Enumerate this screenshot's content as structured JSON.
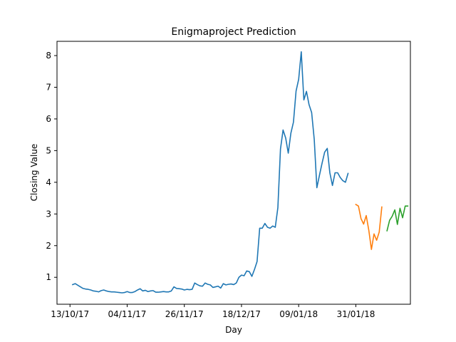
{
  "chart_data": {
    "type": "line",
    "title": "Enigmaproject Prediction",
    "xlabel": "Day",
    "ylabel": "Closing Value",
    "xlim": [
      -5,
      131
    ],
    "ylim": [
      0.15,
      8.45
    ],
    "grid": false,
    "x_ticks": [
      {
        "x": 0,
        "label": "13/10/17"
      },
      {
        "x": 22,
        "label": "04/11/17"
      },
      {
        "x": 44,
        "label": "26/11/17"
      },
      {
        "x": 66,
        "label": "18/12/17"
      },
      {
        "x": 88,
        "label": "09/01/18"
      },
      {
        "x": 110,
        "label": "31/01/18"
      }
    ],
    "y_ticks": [
      1,
      2,
      3,
      4,
      5,
      6,
      7,
      8
    ],
    "series": [
      {
        "color": "#1f77b4",
        "x": [
          1,
          2,
          3,
          4,
          5,
          6,
          7,
          8,
          9,
          10,
          11,
          12,
          13,
          14,
          15,
          16,
          17,
          18,
          19,
          20,
          21,
          22,
          23,
          24,
          25,
          26,
          27,
          28,
          29,
          30,
          31,
          32,
          33,
          34,
          35,
          36,
          37,
          38,
          39,
          40,
          41,
          42,
          43,
          44,
          45,
          46,
          47,
          48,
          49,
          50,
          51,
          52,
          53,
          54,
          55,
          56,
          57,
          58,
          59,
          60,
          61,
          62,
          63,
          64,
          65,
          66,
          67,
          68,
          69,
          70,
          71,
          72,
          73,
          74,
          75,
          76,
          77,
          78,
          79,
          80,
          81,
          82,
          83,
          84,
          85,
          86,
          87,
          88,
          89,
          90,
          91,
          92,
          93,
          94,
          95,
          96,
          97,
          98,
          99,
          100,
          101,
          102,
          103,
          104,
          105,
          106,
          107
        ],
        "y": [
          0.77,
          0.8,
          0.75,
          0.7,
          0.65,
          0.63,
          0.62,
          0.6,
          0.57,
          0.56,
          0.54,
          0.58,
          0.6,
          0.57,
          0.55,
          0.54,
          0.54,
          0.53,
          0.52,
          0.51,
          0.52,
          0.55,
          0.52,
          0.52,
          0.55,
          0.6,
          0.64,
          0.57,
          0.59,
          0.55,
          0.57,
          0.58,
          0.53,
          0.53,
          0.54,
          0.55,
          0.54,
          0.54,
          0.57,
          0.7,
          0.65,
          0.64,
          0.63,
          0.6,
          0.62,
          0.61,
          0.62,
          0.82,
          0.77,
          0.73,
          0.72,
          0.82,
          0.78,
          0.76,
          0.68,
          0.7,
          0.72,
          0.66,
          0.8,
          0.76,
          0.78,
          0.79,
          0.77,
          0.82,
          1.0,
          1.07,
          1.05,
          1.2,
          1.18,
          1.03,
          1.25,
          1.5,
          2.55,
          2.55,
          2.7,
          2.58,
          2.55,
          2.62,
          2.58,
          3.2,
          5.05,
          5.65,
          5.4,
          4.92,
          5.55,
          5.9,
          6.88,
          7.25,
          8.12,
          6.6,
          6.87,
          6.45,
          6.2,
          5.35,
          3.83,
          4.22,
          4.6,
          4.95,
          5.07,
          4.3,
          3.9,
          4.3,
          4.3,
          4.15,
          4.05,
          4.0,
          4.28
        ]
      },
      {
        "color": "#ff7f0e",
        "x": [
          110,
          111,
          112,
          113,
          114,
          115,
          116,
          117,
          118,
          119,
          120
        ],
        "y": [
          3.3,
          3.25,
          2.85,
          2.68,
          2.95,
          2.48,
          1.88,
          2.37,
          2.17,
          2.43,
          3.22
        ]
      },
      {
        "color": "#2ca02c",
        "x": [
          122,
          123,
          124,
          125,
          126,
          127,
          128,
          129,
          130
        ],
        "y": [
          2.47,
          2.8,
          2.93,
          3.13,
          2.67,
          3.18,
          2.88,
          3.25,
          3.25
        ]
      }
    ]
  }
}
